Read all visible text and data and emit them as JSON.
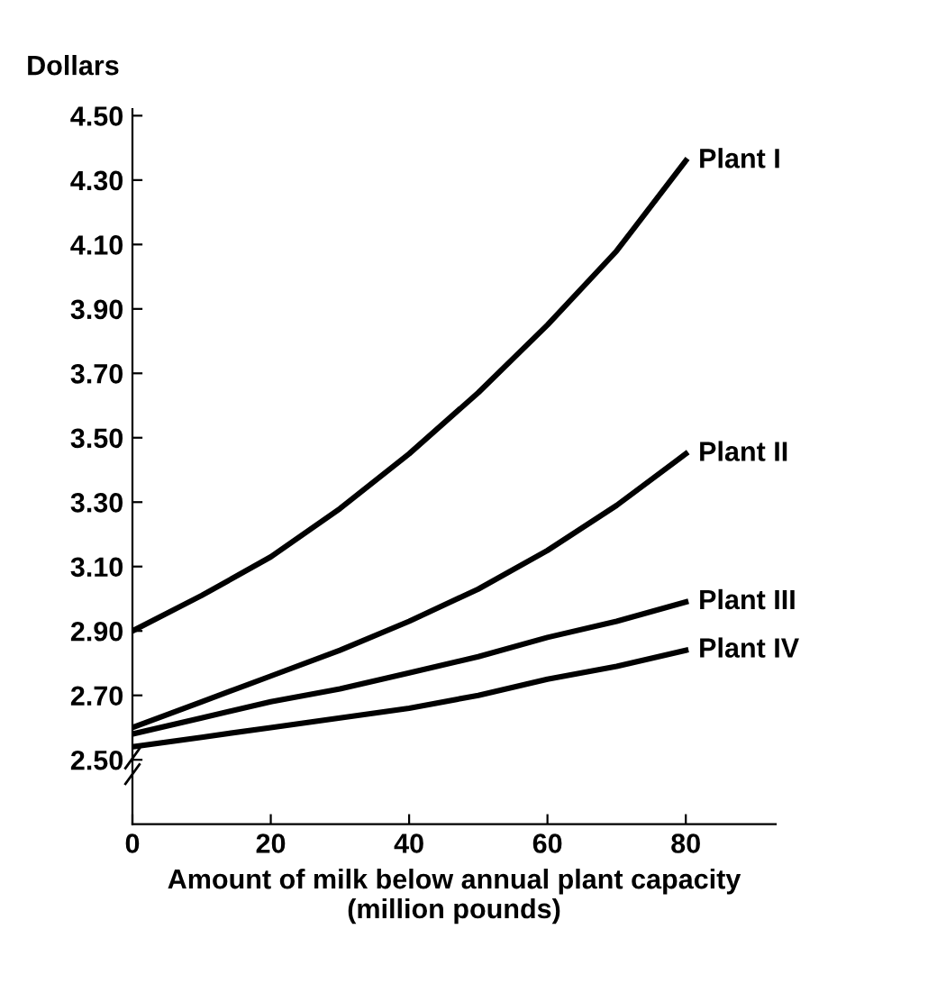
{
  "chart_data": {
    "type": "line",
    "ylabel": "Dollars",
    "xlabel": "Amount of milk below annual plant capacity\n(million pounds)",
    "x": [
      0,
      10,
      20,
      30,
      40,
      50,
      60,
      70,
      80
    ],
    "series": [
      {
        "name": "Plant I",
        "color": "#000000",
        "values": [
          2.9,
          3.01,
          3.13,
          3.28,
          3.45,
          3.64,
          3.85,
          4.08,
          4.36
        ]
      },
      {
        "name": "Plant II",
        "color": "#000000",
        "values": [
          2.6,
          2.68,
          2.76,
          2.84,
          2.93,
          3.03,
          3.15,
          3.29,
          3.45
        ]
      },
      {
        "name": "Plant III",
        "color": "#000000",
        "values": [
          2.58,
          2.63,
          2.68,
          2.72,
          2.77,
          2.82,
          2.88,
          2.93,
          2.99
        ]
      },
      {
        "name": "Plant IV",
        "color": "#000000",
        "values": [
          2.54,
          2.57,
          2.6,
          2.63,
          2.66,
          2.7,
          2.75,
          2.79,
          2.84
        ]
      }
    ],
    "xlim": [
      0,
      93
    ],
    "ylim": [
      2.3,
      4.52
    ],
    "xticks": [
      0,
      20,
      40,
      60,
      80
    ],
    "yticks": [
      {
        "value": 2.5,
        "label": "2.50"
      },
      {
        "value": 2.7,
        "label": "2.70"
      },
      {
        "value": 2.9,
        "label": "2.90"
      },
      {
        "value": 3.1,
        "label": "3.10"
      },
      {
        "value": 3.3,
        "label": "3.30"
      },
      {
        "value": 3.5,
        "label": "3.50"
      },
      {
        "value": 3.7,
        "label": "3.70"
      },
      {
        "value": 3.9,
        "label": "3.90"
      },
      {
        "value": 4.1,
        "label": "4.10"
      },
      {
        "value": 4.3,
        "label": "4.30"
      },
      {
        "value": 4.5,
        "label": "4.50"
      }
    ],
    "grid": false,
    "legend": false,
    "marker": "none",
    "line_style": "solid"
  }
}
